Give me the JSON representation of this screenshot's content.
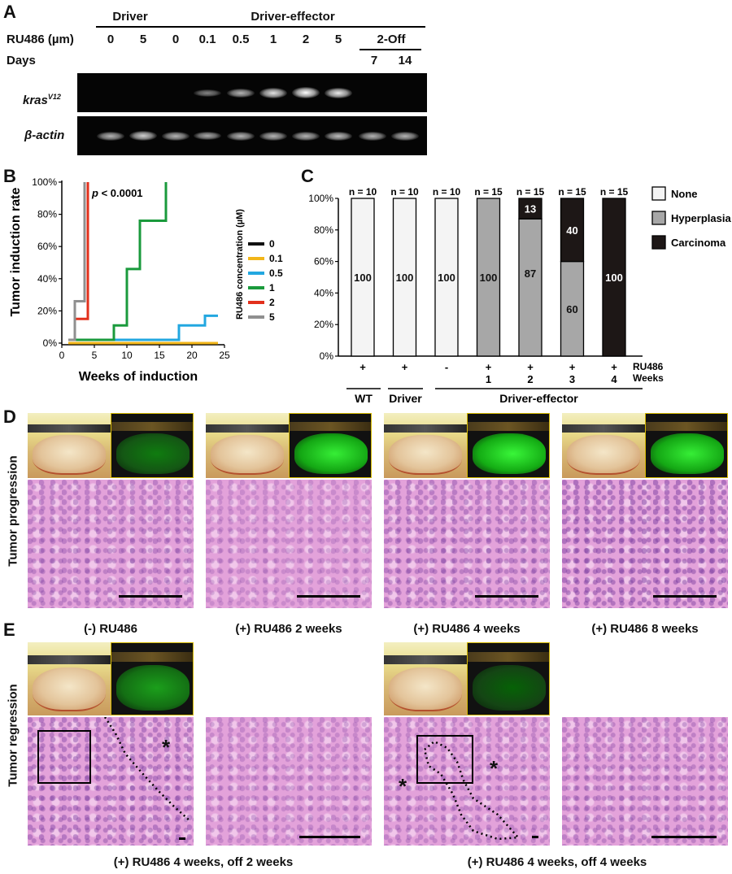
{
  "panelA": {
    "label": "A",
    "group_driver": "Driver",
    "group_driver_effector": "Driver-effector",
    "ru486_label": "RU486 (µm)",
    "days_label": "Days",
    "two_off": "2-Off",
    "lanes": [
      "0",
      "5",
      "0",
      "0.1",
      "0.5",
      "1",
      "2",
      "5"
    ],
    "days": [
      "7",
      "14"
    ],
    "kras_label": "kras",
    "kras_sup": "V12",
    "actin_label": "β-actin",
    "kras_band_intensity": [
      0,
      0,
      0,
      0.35,
      0.6,
      0.85,
      1.0,
      0.9,
      0,
      0
    ],
    "actin_band_intensity": [
      0.6,
      0.75,
      0.6,
      0.55,
      0.6,
      0.6,
      0.6,
      0.65,
      0.6,
      0.6
    ]
  },
  "panelB": {
    "label": "B",
    "chart_data": {
      "type": "line",
      "ylabel": "Tumor induction rate",
      "xlabel": "Weeks of induction",
      "legend_title": "RU486 concentration (µM)",
      "annotation_p": "p",
      "annotation_rest": " < 0.0001",
      "xlim": [
        0,
        25
      ],
      "ylim": [
        0,
        100
      ],
      "xticks": [
        "0",
        "5",
        "10",
        "15",
        "20",
        "25"
      ],
      "yticks": [
        "0%",
        "20%",
        "40%",
        "60%",
        "80%",
        "100%"
      ],
      "series": [
        {
          "name": "0",
          "color": "#111111",
          "x": [
            1,
            24
          ],
          "y": [
            0,
            0
          ]
        },
        {
          "name": "0.1",
          "color": "#f2b619",
          "x": [
            1,
            24
          ],
          "y": [
            0,
            0
          ]
        },
        {
          "name": "0.5",
          "color": "#22a7e0",
          "x": [
            1,
            18,
            18,
            22,
            22,
            24
          ],
          "y": [
            2,
            2,
            11,
            11,
            17,
            17
          ]
        },
        {
          "name": "1",
          "color": "#1a9a3c",
          "x": [
            1,
            8,
            8,
            10,
            10,
            12,
            12,
            16,
            16
          ],
          "y": [
            2,
            2,
            11,
            11,
            46,
            46,
            76,
            76,
            100
          ]
        },
        {
          "name": "2",
          "color": "#e2301c",
          "x": [
            1,
            2,
            2,
            4,
            4
          ],
          "y": [
            2,
            2,
            15,
            15,
            100
          ]
        },
        {
          "name": "5",
          "color": "#8f8f8f",
          "x": [
            1,
            2,
            2,
            3.5,
            3.5
          ],
          "y": [
            2,
            2,
            26,
            26,
            100
          ]
        }
      ]
    }
  },
  "panelC": {
    "label": "C",
    "chart_data": {
      "type": "bar",
      "stacked": true,
      "ylim": [
        0,
        100
      ],
      "yticks": [
        "0%",
        "20%",
        "40%",
        "60%",
        "80%",
        "100%"
      ],
      "n_labels": [
        "n = 10",
        "n = 10",
        "n = 10",
        "n = 15",
        "n = 15",
        "n = 15",
        "n = 15"
      ],
      "ru486_row": [
        "+",
        "+",
        "-",
        "+",
        "+",
        "+",
        "+"
      ],
      "weeks_row": [
        "",
        "",
        "",
        "1",
        "2",
        "3",
        "4"
      ],
      "row_label_ru486": "RU486",
      "row_label_weeks": "Weeks",
      "groups": [
        "WT",
        "Driver",
        "Driver-effector"
      ],
      "series": [
        {
          "name": "None",
          "color": "#f4f4f4",
          "values": [
            100,
            100,
            100,
            0,
            0,
            0,
            0
          ]
        },
        {
          "name": "Hyperplasia",
          "color": "#a7a7a7",
          "values": [
            0,
            0,
            0,
            100,
            87,
            60,
            0
          ]
        },
        {
          "name": "Carcinoma",
          "color": "#1d1716",
          "values": [
            0,
            0,
            0,
            0,
            13,
            40,
            100
          ]
        }
      ],
      "bar_labels": [
        "100",
        "100",
        "100",
        "100",
        "87|13",
        "60|40",
        "100"
      ],
      "legend_placement": "right"
    }
  },
  "panelD": {
    "label": "D",
    "row_label": "Tumor progression",
    "captions": [
      "(-) RU486",
      "(+) RU486 2 weeks",
      "(+) RU486 4 weeks",
      "(+) RU486 8 weeks"
    ],
    "fluorescence_level": [
      0.25,
      0.9,
      0.95,
      0.9
    ]
  },
  "panelE": {
    "label": "E",
    "row_label": "Tumor regression",
    "captions": [
      "(+) RU486 4 weeks, off 2 weeks",
      "(+) RU486 4 weeks, off 4 weeks"
    ],
    "asterisk": "*",
    "fluorescence_level": [
      0.45,
      0.1
    ]
  }
}
